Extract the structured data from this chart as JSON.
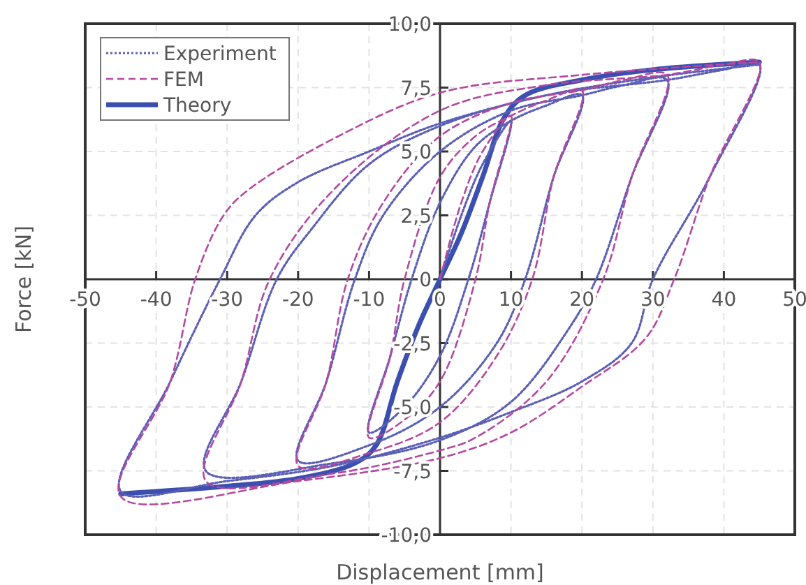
{
  "chart_data": {
    "type": "line",
    "xlabel": "Displacement [mm]",
    "ylabel": "Force [kN]",
    "xlim": [
      -50,
      50
    ],
    "ylim": [
      -10,
      10
    ],
    "xticks": [
      -50,
      -40,
      -30,
      -20,
      -10,
      0,
      10,
      20,
      30,
      40,
      50
    ],
    "yticks": [
      {
        "value": -10,
        "label": "-10,0"
      },
      {
        "value": -7.5,
        "label": "-7,5"
      },
      {
        "value": -5,
        "label": "-5,0"
      },
      {
        "value": -2.5,
        "label": "-2,5"
      },
      0,
      {
        "value": 2.5,
        "label": "2,5"
      },
      {
        "value": 5,
        "label": "5,0"
      },
      {
        "value": 7.5,
        "label": "7,5"
      },
      {
        "value": 10,
        "label": "10,0"
      }
    ],
    "grid": true,
    "legend": "top left",
    "marker": "none",
    "series": [
      {
        "name": "Experiment",
        "color": "#5b5fb5",
        "line_style": "dotted",
        "x": [
          0,
          3,
          6,
          10,
          7,
          4,
          0,
          -5,
          -10,
          -7,
          -4,
          0,
          5,
          10,
          15,
          20,
          16,
          12,
          8,
          0,
          -10,
          -20,
          -16,
          -12,
          -8,
          0,
          10,
          20,
          26,
          32,
          27,
          22,
          18,
          10,
          0,
          -15,
          -33,
          -28,
          -23,
          -18,
          -10,
          0,
          15,
          32,
          40,
          45,
          38,
          30,
          27,
          20,
          10,
          0,
          -15,
          -30,
          -45,
          -38,
          -31,
          -26,
          -20,
          -10,
          0,
          15,
          30,
          45
        ],
        "values": [
          0,
          2.5,
          4.5,
          6.2,
          3,
          0,
          -3,
          -5,
          -6,
          -3,
          0,
          3,
          5.2,
          6.2,
          6.8,
          7.2,
          4,
          0,
          -2.5,
          -5,
          -6.5,
          -7.1,
          -4,
          0,
          2.5,
          5,
          6.6,
          7.2,
          7.6,
          7.8,
          4,
          0,
          -2,
          -4.8,
          -6.3,
          -7.2,
          -7.5,
          -4,
          0,
          2,
          4.5,
          6,
          7.2,
          7.8,
          8.2,
          8.4,
          4,
          0,
          -2.5,
          -4,
          -5.2,
          -6.2,
          -7.3,
          -7.9,
          -8.3,
          -4,
          0,
          2.5,
          3.8,
          5,
          6.1,
          7.2,
          7.9,
          8.4
        ]
      },
      {
        "name": "FEM",
        "color": "#b5489f",
        "line_style": "dashed",
        "x": [
          0,
          3,
          6,
          10,
          7,
          5,
          0,
          -5,
          -10,
          -7,
          -5,
          0,
          5,
          10,
          15,
          20,
          16,
          13,
          8,
          0,
          -10,
          -20,
          -16,
          -13,
          -8,
          0,
          10,
          20,
          26,
          32,
          27,
          23,
          15,
          5,
          0,
          -15,
          -33,
          -28,
          -24,
          -15,
          0,
          15,
          32,
          40,
          45,
          38,
          33,
          29,
          20,
          10,
          0,
          -20,
          -45,
          -38,
          -34.5,
          -30.5,
          -27,
          -15,
          0,
          20,
          45
        ],
        "values": [
          0,
          3,
          5,
          6.4,
          3,
          0,
          -4,
          -5.5,
          -6.2,
          -3,
          0,
          4,
          5.6,
          6.4,
          7,
          7.4,
          4,
          0,
          -3,
          -5.6,
          -6.8,
          -7.3,
          -4,
          0,
          3,
          5.6,
          6.9,
          7.4,
          7.8,
          8,
          4,
          0,
          -4,
          -6.2,
          -6.7,
          -7.6,
          -7.9,
          -4,
          0,
          3.5,
          6.6,
          7.6,
          8,
          8.4,
          8.5,
          4,
          0,
          -2.3,
          -4.2,
          -6,
          -7,
          -7.9,
          -8.5,
          -4,
          0,
          2.5,
          3.5,
          5.5,
          7.3,
          8,
          8.5
        ]
      },
      {
        "name": "Theory",
        "color": "#3a4fb0",
        "line_style": "solid",
        "x": [
          -45,
          -30,
          -20,
          -12,
          -9,
          -6,
          -3,
          0,
          3,
          6,
          9,
          12,
          20,
          30,
          45
        ],
        "values": [
          -8.4,
          -8.1,
          -7.8,
          -7.2,
          -6.5,
          -4,
          -1.8,
          0,
          1.8,
          4,
          6.3,
          7.2,
          7.8,
          8.2,
          8.5
        ]
      }
    ]
  }
}
